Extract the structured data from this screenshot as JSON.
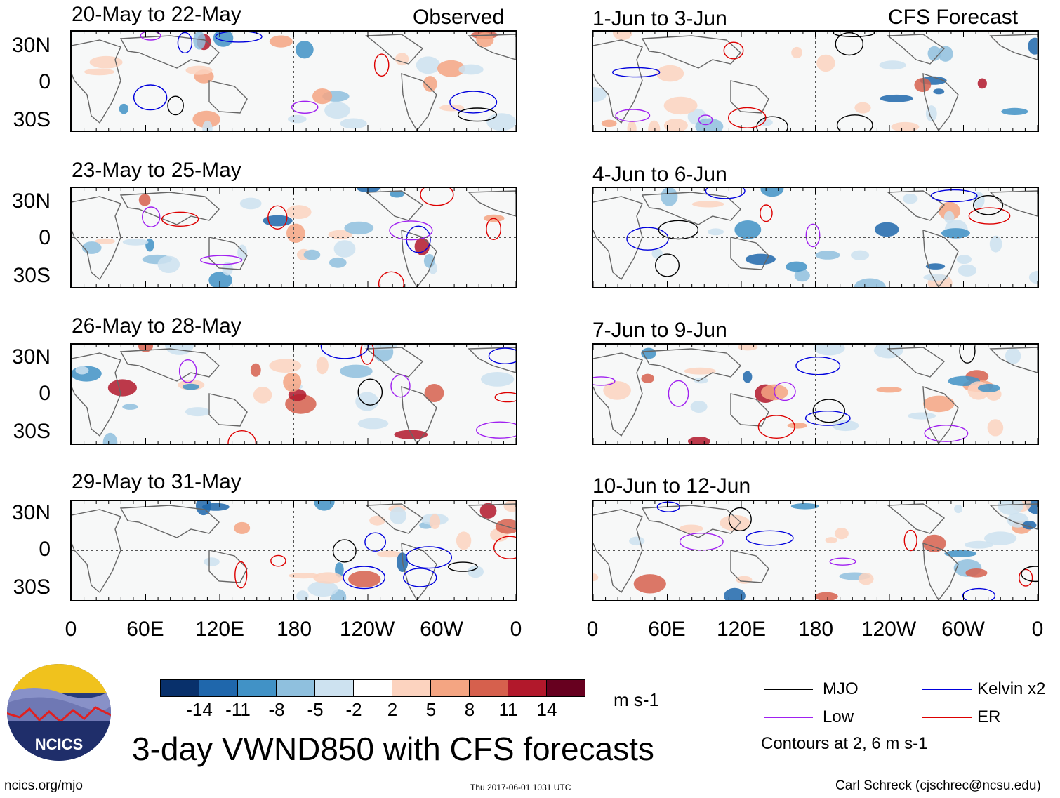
{
  "observed_label": "Observed",
  "forecast_label": "CFS Forecast",
  "observed_panels": [
    {
      "title": "20-May to 22-May"
    },
    {
      "title": "23-May to 25-May"
    },
    {
      "title": "26-May to 28-May"
    },
    {
      "title": "29-May to 31-May"
    }
  ],
  "forecast_panels": [
    {
      "title": "1-Jun to 3-Jun"
    },
    {
      "title": "4-Jun to 6-Jun"
    },
    {
      "title": "7-Jun to 9-Jun"
    },
    {
      "title": "10-Jun to 12-Jun"
    }
  ],
  "lat_labels": [
    "30N",
    "0",
    "30S"
  ],
  "lon_labels": [
    "0",
    "60E",
    "120E",
    "180",
    "120W",
    "60W",
    "0"
  ],
  "colorbar": {
    "colors": [
      "#08306b",
      "#1f67ac",
      "#4192c6",
      "#8fc0de",
      "#cde2f0",
      "#ffffff",
      "#fcd3bf",
      "#f4a582",
      "#d6604d",
      "#b2182b",
      "#67001f"
    ],
    "ticks": [
      "-14",
      "-11",
      "-8",
      "-5",
      "-2",
      "2",
      "5",
      "8",
      "11",
      "14"
    ],
    "units": "m s-1"
  },
  "legend": {
    "items": [
      {
        "label": "MJO",
        "color": "#000000"
      },
      {
        "label": "Kelvin x2",
        "color": "#0000dd"
      },
      {
        "label": "Low",
        "color": "#a020f0"
      },
      {
        "label": "ER",
        "color": "#dd0000"
      }
    ],
    "note": "Contours at 2, 6 m s-1"
  },
  "main_title": "3-day VWND850 with CFS forecasts",
  "logo_text": "NCICS",
  "footer": {
    "left": "ncics.org/mjo",
    "center": "Thu 2017-06-01 1031 UTC",
    "right": "Carl Schreck (cjschrec@ncsu.edu)"
  }
}
